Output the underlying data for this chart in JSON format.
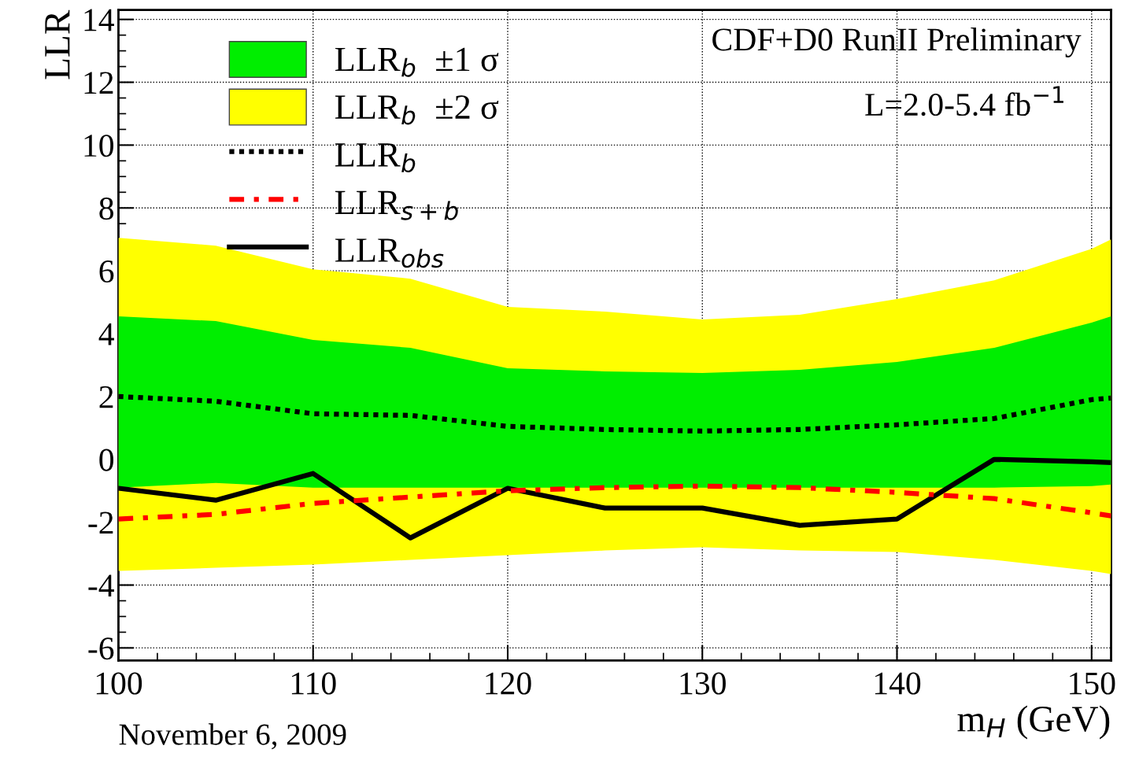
{
  "chart_data": {
    "type": "line",
    "xlabel": "m$_{H}$ (GeV)",
    "ylabel": "LLR",
    "x": [
      100,
      105,
      110,
      115,
      120,
      125,
      130,
      135,
      140,
      145,
      150,
      151
    ],
    "xlim": [
      100,
      151
    ],
    "xticks": [
      100,
      110,
      120,
      130,
      140,
      150
    ],
    "ylim": [
      -6.4,
      14.3
    ],
    "yticks": [
      -6,
      -4,
      -2,
      0,
      2,
      4,
      6,
      8,
      10,
      12,
      14
    ],
    "grid": true,
    "legend": "top left",
    "marker": "none",
    "series": [
      {
        "name": "LLR$_{b}$  ±1 σ",
        "type": "line",
        "color": "#00ee00",
        "values": [
          null,
          null,
          null,
          null,
          null,
          null,
          null,
          null,
          null,
          null,
          null,
          null
        ],
        "lower": [
          -0.9,
          -0.75,
          -0.9,
          -0.9,
          -0.9,
          -0.9,
          -0.9,
          -0.9,
          -0.9,
          -0.9,
          -0.85,
          -0.8
        ],
        "upper": [
          4.55,
          4.4,
          3.8,
          3.55,
          2.9,
          2.8,
          2.75,
          2.85,
          3.1,
          3.55,
          4.35,
          4.55
        ]
      },
      {
        "name": "LLR$_{b}$  ±2 σ",
        "type": "line",
        "color": "#ffff00",
        "values": [
          null,
          null,
          null,
          null,
          null,
          null,
          null,
          null,
          null,
          null,
          null,
          null
        ],
        "lower": [
          -3.55,
          -3.45,
          -3.35,
          -3.2,
          -3.05,
          -2.9,
          -2.8,
          -2.9,
          -2.95,
          -3.2,
          -3.55,
          -3.65
        ],
        "upper": [
          7.05,
          6.8,
          6.05,
          5.75,
          4.85,
          4.7,
          4.45,
          4.6,
          5.1,
          5.7,
          6.7,
          7.0
        ]
      },
      {
        "name": "LLR$_{b}$",
        "type": "line",
        "color": "#000000",
        "line_style": "dotted",
        "values": [
          2.0,
          1.85,
          1.45,
          1.4,
          1.05,
          0.95,
          0.9,
          0.95,
          1.1,
          1.3,
          1.9,
          1.95
        ]
      },
      {
        "name": "LLR$_{s+b}$",
        "type": "line",
        "color": "#ff0000",
        "line_style": "dashdot",
        "values": [
          -1.9,
          -1.75,
          -1.4,
          -1.2,
          -1.0,
          -0.9,
          -0.85,
          -0.9,
          -1.05,
          -1.25,
          -1.7,
          -1.8
        ]
      },
      {
        "name": "LLR$_{obs}$",
        "type": "line",
        "color": "#000000",
        "line_style": "solid",
        "values": [
          -0.92,
          -1.3,
          -0.45,
          -2.5,
          -0.92,
          -1.55,
          -1.55,
          -2.1,
          -1.9,
          0.0,
          -0.08,
          -0.1
        ]
      }
    ],
    "annotations": [
      "CDF+D0 RunII Preliminary",
      "L=2.0-5.4 fb$^{−1}$",
      "November 6, 2009"
    ]
  }
}
